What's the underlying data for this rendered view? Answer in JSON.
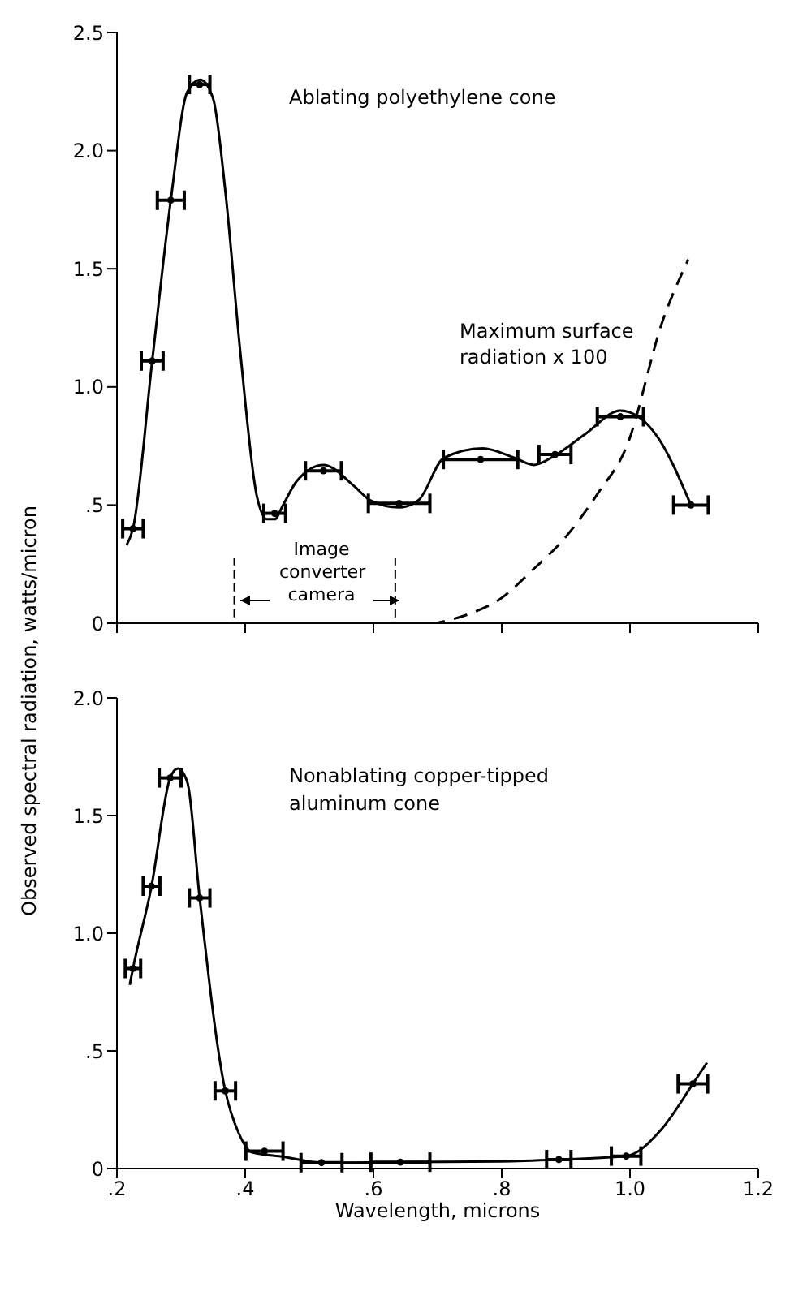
{
  "chart_data": [
    {
      "type": "scatter",
      "ylabel": "Observed spectral radiation, watts/micron",
      "tick_labels": "y",
      "grid": false,
      "legend": false,
      "annotations": [
        "Ablating polyethylene cone",
        "Image converter camera"
      ],
      "xlim": [
        0.2,
        1.2
      ],
      "xticks": [
        {
          "value": 0.2,
          "label": null
        },
        {
          "value": 0.4,
          "label": null
        },
        {
          "value": 0.6,
          "label": null
        },
        {
          "value": 0.8,
          "label": null
        },
        {
          "value": 1.0,
          "label": null
        },
        {
          "value": 1.2,
          "label": null
        }
      ],
      "ylim": [
        0,
        2.5
      ],
      "yticks": [
        0,
        {
          "value": 0.5,
          "label": ".5"
        },
        {
          "value": 1.0,
          "label": "1.0"
        },
        {
          "value": 1.5,
          "label": "1.5"
        },
        {
          "value": 2.0,
          "label": "2.0"
        },
        {
          "value": 2.5,
          "label": "2.5"
        }
      ],
      "ref_lines": [
        {
          "axis": "x",
          "value": 0.383,
          "line_style": "dashed"
        },
        {
          "axis": "x",
          "value": 0.634,
          "line_style": "dashed"
        }
      ],
      "series": [
        {
          "color": "#000000",
          "x": [
            0.225,
            0.255,
            0.284,
            0.329,
            0.446,
            0.522,
            0.64,
            0.767,
            0.883,
            0.985,
            1.095
          ],
          "values": [
            0.4,
            1.11,
            1.79,
            2.28,
            0.465,
            0.645,
            0.507,
            0.693,
            0.714,
            0.874,
            0.5
          ],
          "xerrors": [
            0.016,
            0.017,
            0.021,
            0.016,
            0.017,
            0.028,
            0.048,
            0.058,
            0.025,
            0.036,
            0.027
          ]
        },
        {
          "type": "line",
          "color": "#000000",
          "line_style": "solid",
          "x": [
            0.215,
            0.225,
            0.255,
            0.284,
            0.31,
            0.33,
            0.35,
            0.369,
            0.393,
            0.418,
            0.434,
            0.446,
            0.459,
            0.48,
            0.522,
            0.57,
            0.595,
            0.64,
            0.67,
            0.71,
            0.77,
            0.82,
            0.85,
            0.883,
            0.93,
            0.985,
            1.04,
            1.095
          ],
          "values": [
            0.33,
            0.4,
            1.11,
            1.79,
            2.25,
            2.3,
            2.22,
            1.83,
            1.13,
            0.54,
            0.44,
            0.44,
            0.5,
            0.6,
            0.67,
            0.58,
            0.52,
            0.49,
            0.52,
            0.7,
            0.74,
            0.7,
            0.67,
            0.71,
            0.8,
            0.9,
            0.8,
            0.5
          ]
        },
        {
          "type": "line",
          "name": "Maximum surface radiation x 100",
          "color": "#000000",
          "line_style": "dashed",
          "x": [
            0.697,
            0.75,
            0.796,
            0.85,
            0.895,
            0.95,
            0.995,
            1.051,
            1.091
          ],
          "values": [
            0,
            0.04,
            0.1,
            0.23,
            0.35,
            0.55,
            0.75,
            1.28,
            1.54
          ]
        }
      ]
    },
    {
      "type": "scatter",
      "xlabel": "Wavelength, microns",
      "grid": false,
      "legend": false,
      "annotations": [
        "Nonablating copper-tipped aluminum cone"
      ],
      "xlim": [
        0.2,
        1.2
      ],
      "xticks": [
        {
          "value": 0.2,
          "label": ".2"
        },
        {
          "value": 0.4,
          "label": ".4"
        },
        {
          "value": 0.6,
          "label": ".6"
        },
        {
          "value": 0.8,
          "label": ".8"
        },
        {
          "value": 1.0,
          "label": "1.0"
        },
        {
          "value": 1.2,
          "label": "1.2"
        }
      ],
      "ylim": [
        0,
        2.0
      ],
      "yticks": [
        0,
        {
          "value": 0.5,
          "label": ".5"
        },
        {
          "value": 1.0,
          "label": "1.0"
        },
        {
          "value": 1.5,
          "label": "1.5"
        },
        {
          "value": 2.0,
          "label": "2.0"
        }
      ],
      "series": [
        {
          "color": "#000000",
          "x": [
            0.225,
            0.254,
            0.283,
            0.329,
            0.369,
            0.43,
            0.519,
            0.642,
            0.889,
            0.994,
            1.098
          ],
          "values": [
            0.85,
            1.2,
            1.66,
            1.15,
            0.33,
            0.074,
            0.025,
            0.027,
            0.038,
            0.053,
            0.36
          ],
          "xerrors": [
            0.012,
            0.013,
            0.017,
            0.016,
            0.016,
            0.029,
            0.032,
            0.046,
            0.019,
            0.023,
            0.023
          ]
        },
        {
          "type": "line",
          "color": "#000000",
          "line_style": "solid",
          "x": [
            0.22,
            0.225,
            0.254,
            0.283,
            0.295,
            0.31,
            0.329,
            0.369,
            0.39,
            0.41,
            0.46,
            0.519,
            0.642,
            0.8,
            0.889,
            0.994,
            1.05,
            1.098,
            1.12
          ],
          "values": [
            0.78,
            0.85,
            1.2,
            1.66,
            1.7,
            1.64,
            1.15,
            0.33,
            0.15,
            0.07,
            0.05,
            0.025,
            0.027,
            0.03,
            0.038,
            0.053,
            0.17,
            0.36,
            0.45
          ]
        }
      ]
    }
  ]
}
